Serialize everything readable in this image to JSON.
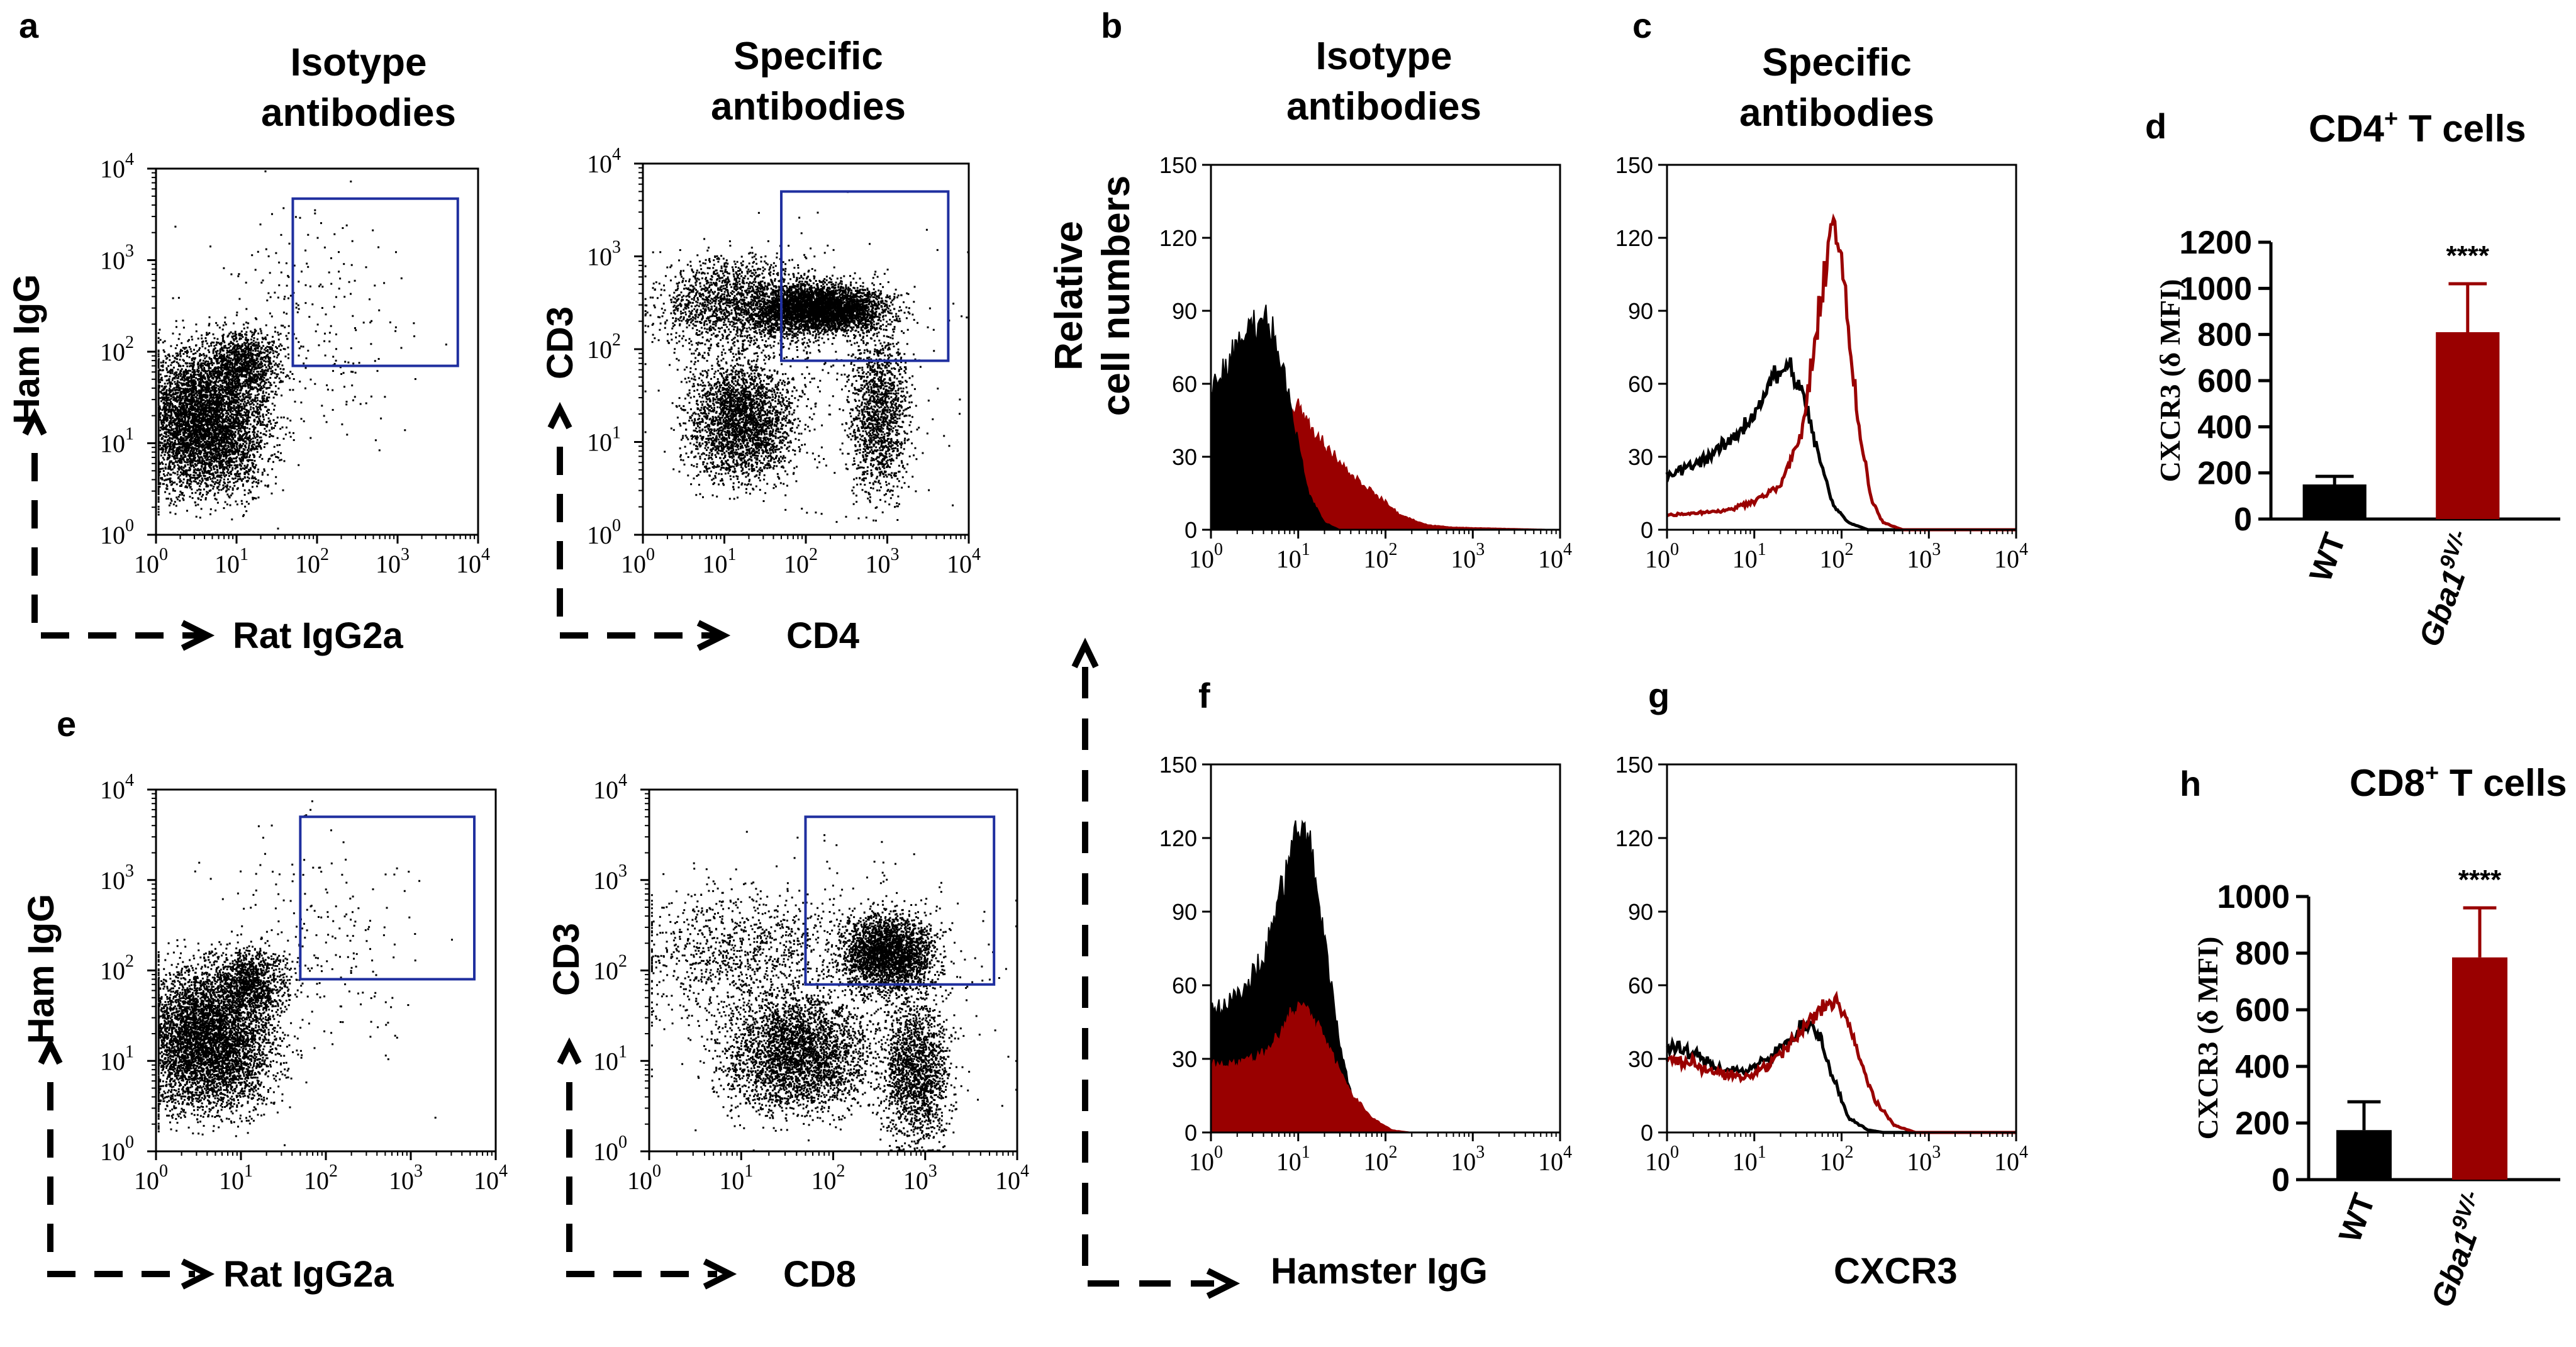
{
  "colors": {
    "control": "#000000",
    "gba": "#990000",
    "gate": "#1f2f9f",
    "axis": "#000000"
  },
  "panel_letters": {
    "a": "a",
    "b": "b",
    "c": "c",
    "d": "d",
    "e": "e",
    "f": "f",
    "g": "g",
    "h": "h"
  },
  "headers": {
    "a": [
      "Isotype",
      "antibodies"
    ],
    "a2": [
      "Specific",
      "antibodies"
    ],
    "b": [
      "Isotype",
      "antibodies"
    ],
    "c": [
      "Specific",
      "antibodies"
    ]
  },
  "hist_ylabel": [
    "Relative",
    "cell numbers"
  ],
  "dot_plots": [
    {
      "id": "a1",
      "ylabel": "Ham IgG",
      "xlabel": "Rat IgG2a",
      "xlim": [
        1,
        10000
      ],
      "ylim": [
        1,
        10000
      ],
      "xscale": "log",
      "yscale": "log",
      "ticks": [
        "0",
        "1",
        "2",
        "3",
        "4"
      ],
      "gate": {
        "x": [
          50,
          5600
        ],
        "y": [
          70,
          4700
        ]
      },
      "population": "isotype"
    },
    {
      "id": "a2",
      "ylabel": "CD3",
      "xlabel": "CD4",
      "xlim": [
        1,
        10000
      ],
      "ylim": [
        1,
        10000
      ],
      "xscale": "log",
      "yscale": "log",
      "ticks": [
        "0",
        "1",
        "2",
        "3",
        "4"
      ],
      "gate": {
        "x": [
          50,
          5600
        ],
        "y": [
          75,
          5000
        ]
      },
      "population": "cd4"
    },
    {
      "id": "e1",
      "ylabel": "Ham IgG",
      "xlabel": "Rat IgG2a",
      "xlim": [
        1,
        10000
      ],
      "ylim": [
        1,
        10000
      ],
      "xscale": "log",
      "yscale": "log",
      "ticks": [
        "0",
        "1",
        "2",
        "3",
        "4"
      ],
      "gate": {
        "x": [
          50,
          5600
        ],
        "y": [
          80,
          5000
        ]
      },
      "population": "isotype"
    },
    {
      "id": "e2",
      "ylabel": "CD3",
      "xlabel": "CD8",
      "xlim": [
        1,
        10000
      ],
      "ylim": [
        1,
        10000
      ],
      "xscale": "log",
      "yscale": "log",
      "ticks": [
        "0",
        "1",
        "2",
        "3",
        "4"
      ],
      "gate": {
        "x": [
          50,
          5600
        ],
        "y": [
          70,
          5000
        ]
      },
      "population": "cd8"
    }
  ],
  "histograms": [
    {
      "id": "b",
      "xlim": [
        1,
        10000
      ],
      "ylim": [
        0,
        150
      ],
      "yticks": [
        0,
        30,
        60,
        90,
        120,
        150
      ],
      "xticks": [
        "0",
        "1",
        "2",
        "3",
        "4"
      ],
      "series": [
        {
          "style": "fill",
          "color": "#990000",
          "points": [
            [
              1,
              40
            ],
            [
              2,
              45
            ],
            [
              4,
              47
            ],
            [
              8,
              48
            ],
            [
              10,
              52
            ],
            [
              12,
              45
            ],
            [
              20,
              35
            ],
            [
              40,
              23
            ],
            [
              80,
              14
            ],
            [
              150,
              6
            ],
            [
              300,
              2
            ],
            [
              600,
              1
            ],
            [
              10000,
              0
            ]
          ]
        },
        {
          "style": "fill",
          "color": "#000000",
          "points": [
            [
              1,
              57
            ],
            [
              2,
              75
            ],
            [
              3,
              85
            ],
            [
              4,
              88
            ],
            [
              5,
              82
            ],
            [
              7,
              65
            ],
            [
              10,
              35
            ],
            [
              13,
              15
            ],
            [
              20,
              3
            ],
            [
              30,
              0
            ],
            [
              10000,
              0
            ]
          ]
        }
      ]
    },
    {
      "id": "c",
      "xlim": [
        1,
        10000
      ],
      "ylim": [
        0,
        150
      ],
      "yticks": [
        0,
        30,
        60,
        90,
        120,
        150
      ],
      "xticks": [
        "0",
        "1",
        "2",
        "3",
        "4"
      ],
      "series": [
        {
          "style": "line",
          "color": "#000000",
          "points": [
            [
              1,
              22
            ],
            [
              3,
              30
            ],
            [
              6,
              38
            ],
            [
              10,
              48
            ],
            [
              15,
              60
            ],
            [
              20,
              65
            ],
            [
              25,
              67
            ],
            [
              30,
              62
            ],
            [
              40,
              50
            ],
            [
              55,
              30
            ],
            [
              80,
              10
            ],
            [
              120,
              3
            ],
            [
              200,
              0
            ],
            [
              10000,
              0
            ]
          ]
        },
        {
          "style": "line",
          "color": "#990000",
          "points": [
            [
              1,
              6
            ],
            [
              5,
              8
            ],
            [
              10,
              12
            ],
            [
              20,
              18
            ],
            [
              35,
              40
            ],
            [
              50,
              75
            ],
            [
              65,
              110
            ],
            [
              80,
              128
            ],
            [
              95,
              118
            ],
            [
              120,
              80
            ],
            [
              160,
              40
            ],
            [
              220,
              12
            ],
            [
              300,
              3
            ],
            [
              500,
              0
            ],
            [
              10000,
              0
            ]
          ]
        }
      ]
    },
    {
      "id": "f",
      "xlim": [
        1,
        10000
      ],
      "ylim": [
        0,
        150
      ],
      "yticks": [
        0,
        30,
        60,
        90,
        120,
        150
      ],
      "xticks": [
        "0",
        "1",
        "2",
        "3",
        "4"
      ],
      "series": [
        {
          "style": "fill",
          "color": "#000000",
          "points": [
            [
              1,
              50
            ],
            [
              2,
              55
            ],
            [
              4,
              70
            ],
            [
              6,
              95
            ],
            [
              8,
              115
            ],
            [
              11,
              125
            ],
            [
              14,
              115
            ],
            [
              20,
              80
            ],
            [
              30,
              35
            ],
            [
              45,
              10
            ],
            [
              70,
              2
            ],
            [
              100,
              0
            ],
            [
              10000,
              0
            ]
          ]
        },
        {
          "style": "fill",
          "color": "#990000",
          "points": [
            [
              1,
              28
            ],
            [
              2,
              28
            ],
            [
              4,
              32
            ],
            [
              6,
              40
            ],
            [
              8,
              48
            ],
            [
              11,
              52
            ],
            [
              15,
              47
            ],
            [
              25,
              32
            ],
            [
              40,
              16
            ],
            [
              70,
              6
            ],
            [
              120,
              1
            ],
            [
              200,
              0
            ],
            [
              10000,
              0
            ]
          ]
        }
      ]
    },
    {
      "id": "g",
      "xlim": [
        1,
        10000
      ],
      "ylim": [
        0,
        150
      ],
      "yticks": [
        0,
        30,
        60,
        90,
        120,
        150
      ],
      "xticks": [
        "0",
        "1",
        "2",
        "3",
        "4"
      ],
      "series": [
        {
          "style": "line",
          "color": "#000000",
          "points": [
            [
              1,
              35
            ],
            [
              2,
              32
            ],
            [
              4,
              26
            ],
            [
              8,
              25
            ],
            [
              15,
              30
            ],
            [
              25,
              38
            ],
            [
              40,
              45
            ],
            [
              55,
              40
            ],
            [
              80,
              22
            ],
            [
              120,
              6
            ],
            [
              200,
              1
            ],
            [
              300,
              0
            ],
            [
              10000,
              0
            ]
          ]
        },
        {
          "style": "line",
          "color": "#990000",
          "points": [
            [
              1,
              30
            ],
            [
              2,
              28
            ],
            [
              4,
              24
            ],
            [
              8,
              22
            ],
            [
              15,
              28
            ],
            [
              30,
              38
            ],
            [
              50,
              48
            ],
            [
              80,
              55
            ],
            [
              110,
              48
            ],
            [
              160,
              30
            ],
            [
              250,
              12
            ],
            [
              400,
              3
            ],
            [
              700,
              0
            ],
            [
              10000,
              0
            ]
          ]
        }
      ]
    }
  ],
  "hist_xlabels": {
    "f": "Hamster IgG",
    "g": "CXCR3"
  },
  "chart_data": [
    {
      "type": "bar",
      "panel": "d",
      "title": "CD4<sup>+</sup> T cells",
      "title_main": "CD4",
      "title_sup": "+",
      "title_rest": " T cells",
      "ylabel": "CXCR3 (δ MFI)",
      "ylim": [
        0,
        1200
      ],
      "yticks": [
        0,
        200,
        400,
        600,
        800,
        1000,
        1200
      ],
      "categories": [
        "WT",
        "Gba1 9V/-"
      ],
      "category_main": [
        "WT",
        "Gba1"
      ],
      "category_sup": [
        "",
        "9V/-"
      ],
      "values": [
        150,
        810
      ],
      "errors": [
        35,
        210
      ],
      "significance": "****"
    },
    {
      "type": "bar",
      "panel": "h",
      "title_main": "CD8",
      "title_sup": "+",
      "title_rest": " T cells",
      "ylabel": "CXCR3 (δ MFI)",
      "ylim": [
        0,
        1000
      ],
      "yticks": [
        0,
        200,
        400,
        600,
        800,
        1000
      ],
      "categories": [
        "WT",
        "Gba1 9V/-"
      ],
      "category_main": [
        "WT",
        "Gba1"
      ],
      "category_sup": [
        "",
        "9V/-"
      ],
      "values": [
        175,
        785
      ],
      "errors": [
        100,
        175
      ],
      "significance": "****"
    }
  ]
}
